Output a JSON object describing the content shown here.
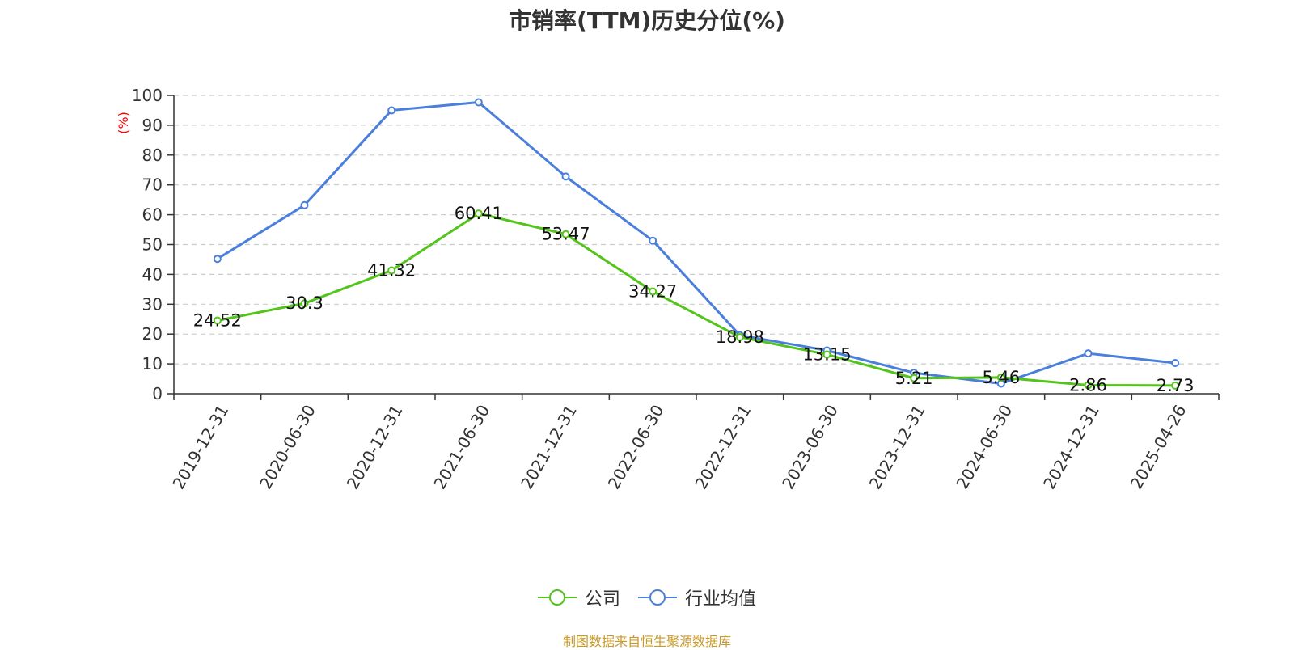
{
  "chart_data": {
    "type": "line",
    "title": "市销率(TTM)历史分位(%)",
    "ylabel": "(%)",
    "xlabel": "",
    "ylim": [
      0,
      100
    ],
    "yticks": [
      0,
      10,
      20,
      30,
      40,
      50,
      60,
      70,
      80,
      90,
      100
    ],
    "categories": [
      "2019-12-31",
      "2020-06-30",
      "2020-12-31",
      "2021-06-30",
      "2021-12-31",
      "2022-06-30",
      "2022-12-31",
      "2023-06-30",
      "2023-12-31",
      "2024-06-30",
      "2024-12-31",
      "2025-04-26"
    ],
    "grid": true,
    "legend_position": "bottom",
    "series": [
      {
        "name": "公司",
        "color": "#52c41a",
        "values": [
          24.52,
          30.3,
          41.32,
          60.41,
          53.47,
          34.27,
          18.98,
          13.15,
          5.21,
          5.46,
          2.86,
          2.73
        ],
        "labels": [
          "24.52",
          "30.3",
          "41.32",
          "60.41",
          "53.47",
          "34.27",
          "18.98",
          "13.15",
          "5.21",
          "5.46",
          "2.86",
          "2.73"
        ]
      },
      {
        "name": "行业均值",
        "color": "#4a7fdb",
        "values": [
          45.2,
          63.2,
          95.0,
          97.7,
          72.8,
          51.3,
          19.6,
          14.5,
          7.0,
          3.4,
          13.5,
          10.3
        ]
      }
    ]
  },
  "footer": {
    "source": "制图数据来自恒生聚源数据库"
  },
  "colors": {
    "title": "#333333",
    "axis": "#333333",
    "grid": "#cccccc",
    "ylabel": "#ff0000",
    "source": "#c89a2a"
  }
}
